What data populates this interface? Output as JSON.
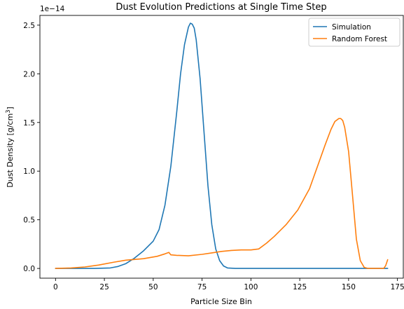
{
  "chart_data": {
    "type": "line",
    "title": "Dust Evolution Predictions at Single Time Step",
    "xlabel": "Particle Size Bin",
    "ylabel": "Dust Density [g/cm",
    "ylabel_sup": "3",
    "ylabel_end": "]",
    "offset_text": "1e−14",
    "xlim": [
      -8,
      178
    ],
    "ylim": [
      -0.1,
      2.6
    ],
    "x_ticks": [
      0,
      25,
      50,
      75,
      100,
      125,
      150,
      175
    ],
    "x_tick_labels": [
      "0",
      "25",
      "50",
      "75",
      "100",
      "125",
      "150",
      "175"
    ],
    "y_ticks": [
      0.0,
      0.5,
      1.0,
      1.5,
      2.0,
      2.5
    ],
    "y_tick_labels": [
      "0.0",
      "0.5",
      "1.0",
      "1.5",
      "2.0",
      "2.5"
    ],
    "legend_position": "top-right",
    "grid": false,
    "series": [
      {
        "name": "Simulation",
        "color": "#1f77b4",
        "x": [
          0,
          20,
          28,
          32,
          36,
          40,
          45,
          50,
          53,
          56,
          59,
          62,
          64,
          66,
          68,
          69,
          70,
          71,
          72,
          74,
          76,
          78,
          80,
          82,
          84,
          86,
          88,
          92,
          100,
          120,
          140,
          160,
          170
        ],
        "y": [
          0,
          0,
          0.005,
          0.02,
          0.05,
          0.1,
          0.18,
          0.28,
          0.4,
          0.65,
          1.05,
          1.6,
          2.0,
          2.3,
          2.48,
          2.52,
          2.51,
          2.47,
          2.35,
          1.95,
          1.4,
          0.85,
          0.45,
          0.2,
          0.08,
          0.025,
          0.005,
          0,
          0,
          0,
          0,
          0,
          0
        ]
      },
      {
        "name": "Random Forest",
        "color": "#ff7f0e",
        "x": [
          0,
          8,
          15,
          22,
          30,
          36,
          45,
          52,
          56,
          58,
          59,
          62,
          68,
          75,
          80,
          85,
          90,
          95,
          100,
          104,
          108,
          112,
          118,
          124,
          130,
          135,
          138,
          141,
          143,
          145,
          146,
          147,
          148,
          150,
          152,
          154,
          156,
          158,
          160,
          162,
          168,
          169,
          170
        ],
        "y": [
          0,
          0.005,
          0.015,
          0.035,
          0.065,
          0.085,
          0.1,
          0.125,
          0.15,
          0.165,
          0.14,
          0.135,
          0.13,
          0.145,
          0.16,
          0.175,
          0.185,
          0.19,
          0.19,
          0.2,
          0.26,
          0.33,
          0.45,
          0.6,
          0.82,
          1.1,
          1.27,
          1.43,
          1.51,
          1.54,
          1.54,
          1.52,
          1.45,
          1.2,
          0.75,
          0.3,
          0.08,
          0.01,
          0,
          0,
          0,
          0.03,
          0.09
        ]
      }
    ]
  }
}
